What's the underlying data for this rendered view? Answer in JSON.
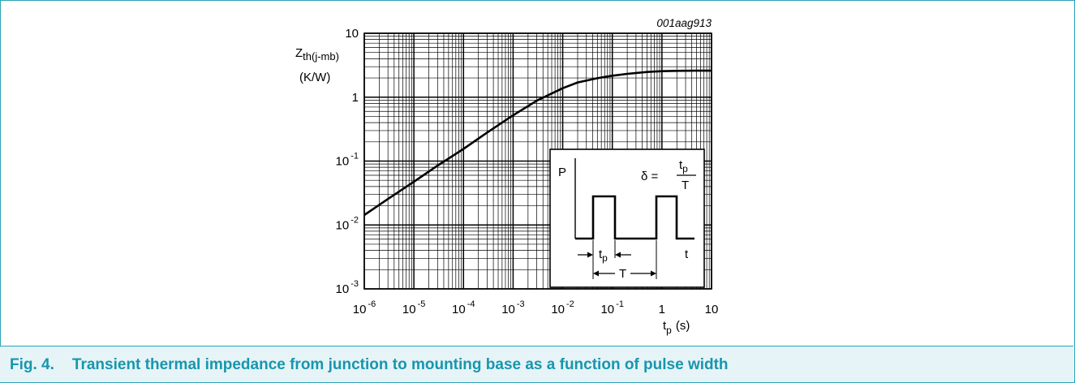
{
  "figure_id": "001aag913",
  "caption": {
    "number": "Fig. 4.",
    "text": "Transient thermal impedance from junction to mounting base as a function of pulse width"
  },
  "chart_data": {
    "type": "line",
    "x_scale": "log",
    "y_scale": "log",
    "xlim": [
      1e-06,
      10
    ],
    "ylim": [
      0.001,
      10
    ],
    "grid": true,
    "ylabel": {
      "symbol": "Z",
      "subscript": "th(j-mb)",
      "unit": "(K/W)"
    },
    "xlabel": {
      "symbol": "t",
      "subscript": "p",
      "unit": "(s)"
    },
    "x_ticks": [
      {
        "value": 1e-06,
        "base": "10",
        "exp": "-6"
      },
      {
        "value": 1e-05,
        "base": "10",
        "exp": "-5"
      },
      {
        "value": 0.0001,
        "base": "10",
        "exp": "-4"
      },
      {
        "value": 0.001,
        "base": "10",
        "exp": "-3"
      },
      {
        "value": 0.01,
        "base": "10",
        "exp": "-2"
      },
      {
        "value": 0.1,
        "base": "10",
        "exp": "-1"
      },
      {
        "value": 1,
        "base": "1",
        "exp": ""
      },
      {
        "value": 10,
        "base": "10",
        "exp": ""
      }
    ],
    "y_ticks": [
      {
        "value": 10,
        "base": "10",
        "exp": ""
      },
      {
        "value": 1,
        "base": "1",
        "exp": ""
      },
      {
        "value": 0.1,
        "base": "10",
        "exp": "-1"
      },
      {
        "value": 0.01,
        "base": "10",
        "exp": "-2"
      },
      {
        "value": 0.001,
        "base": "10",
        "exp": "-3"
      }
    ],
    "series": [
      {
        "x": [
          1e-06,
          3e-06,
          1e-05,
          3e-05,
          0.0001,
          0.0003,
          0.001,
          0.003,
          0.01,
          0.02,
          0.05,
          0.1,
          0.2,
          0.5,
          1,
          2,
          5,
          10
        ],
        "y": [
          0.0143,
          0.0255,
          0.0475,
          0.085,
          0.155,
          0.28,
          0.52,
          0.88,
          1.38,
          1.7,
          1.98,
          2.17,
          2.32,
          2.48,
          2.55,
          2.58,
          2.6,
          2.6
        ]
      }
    ],
    "inset": {
      "axis_p": "P",
      "axis_t": "t",
      "delta": "δ =",
      "frac_num": {
        "symbol": "t",
        "subscript": "p"
      },
      "frac_den": "T",
      "tp_label": {
        "symbol": "t",
        "subscript": "p"
      },
      "period_label": "T"
    }
  }
}
